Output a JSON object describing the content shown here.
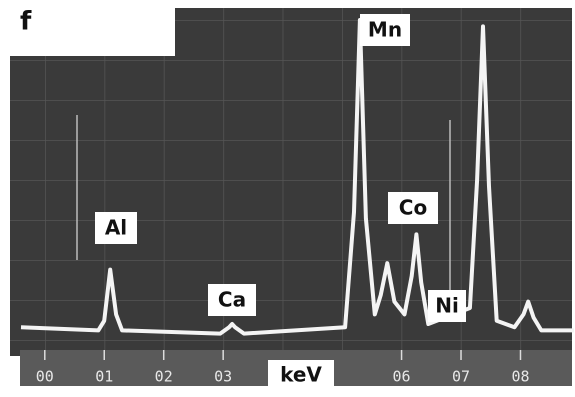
{
  "chart_data": {
    "type": "line",
    "panel_label": "f",
    "x_label": "keV",
    "annotations": [
      "Al",
      "Ca",
      "Mn",
      "Co",
      "Ni"
    ],
    "x": [
      -0.4,
      0.9,
      1.0,
      1.1,
      1.2,
      1.3,
      2.95,
      3.1,
      3.15,
      3.2,
      3.35,
      5.05,
      5.2,
      5.3,
      5.4,
      5.55,
      5.65,
      5.76,
      5.88,
      6.05,
      6.17,
      6.25,
      6.33,
      6.45,
      7.15,
      7.27,
      7.37,
      7.47,
      7.6,
      7.9,
      8.05,
      8.13,
      8.22,
      8.35,
      8.9
    ],
    "values": [
      4,
      3,
      6,
      22,
      8,
      3,
      2,
      4,
      5,
      4,
      2,
      4,
      40,
      100,
      38,
      8,
      14,
      24,
      12,
      8,
      20,
      33,
      18,
      5,
      10,
      50,
      98,
      48,
      6,
      4,
      8,
      12,
      7,
      3,
      3
    ],
    "color": "#f4f4f4",
    "xlim": [
      -0.4,
      8.9
    ],
    "ylim": [
      0,
      100
    ],
    "xticks": [
      {
        "value": 0,
        "label": "00"
      },
      {
        "value": 1,
        "label": "01"
      },
      {
        "value": 2,
        "label": "02"
      },
      {
        "value": 3,
        "label": "03"
      },
      {
        "value": 6,
        "label": "06"
      },
      {
        "value": 7,
        "label": "07"
      },
      {
        "value": 8,
        "label": "08"
      }
    ]
  }
}
